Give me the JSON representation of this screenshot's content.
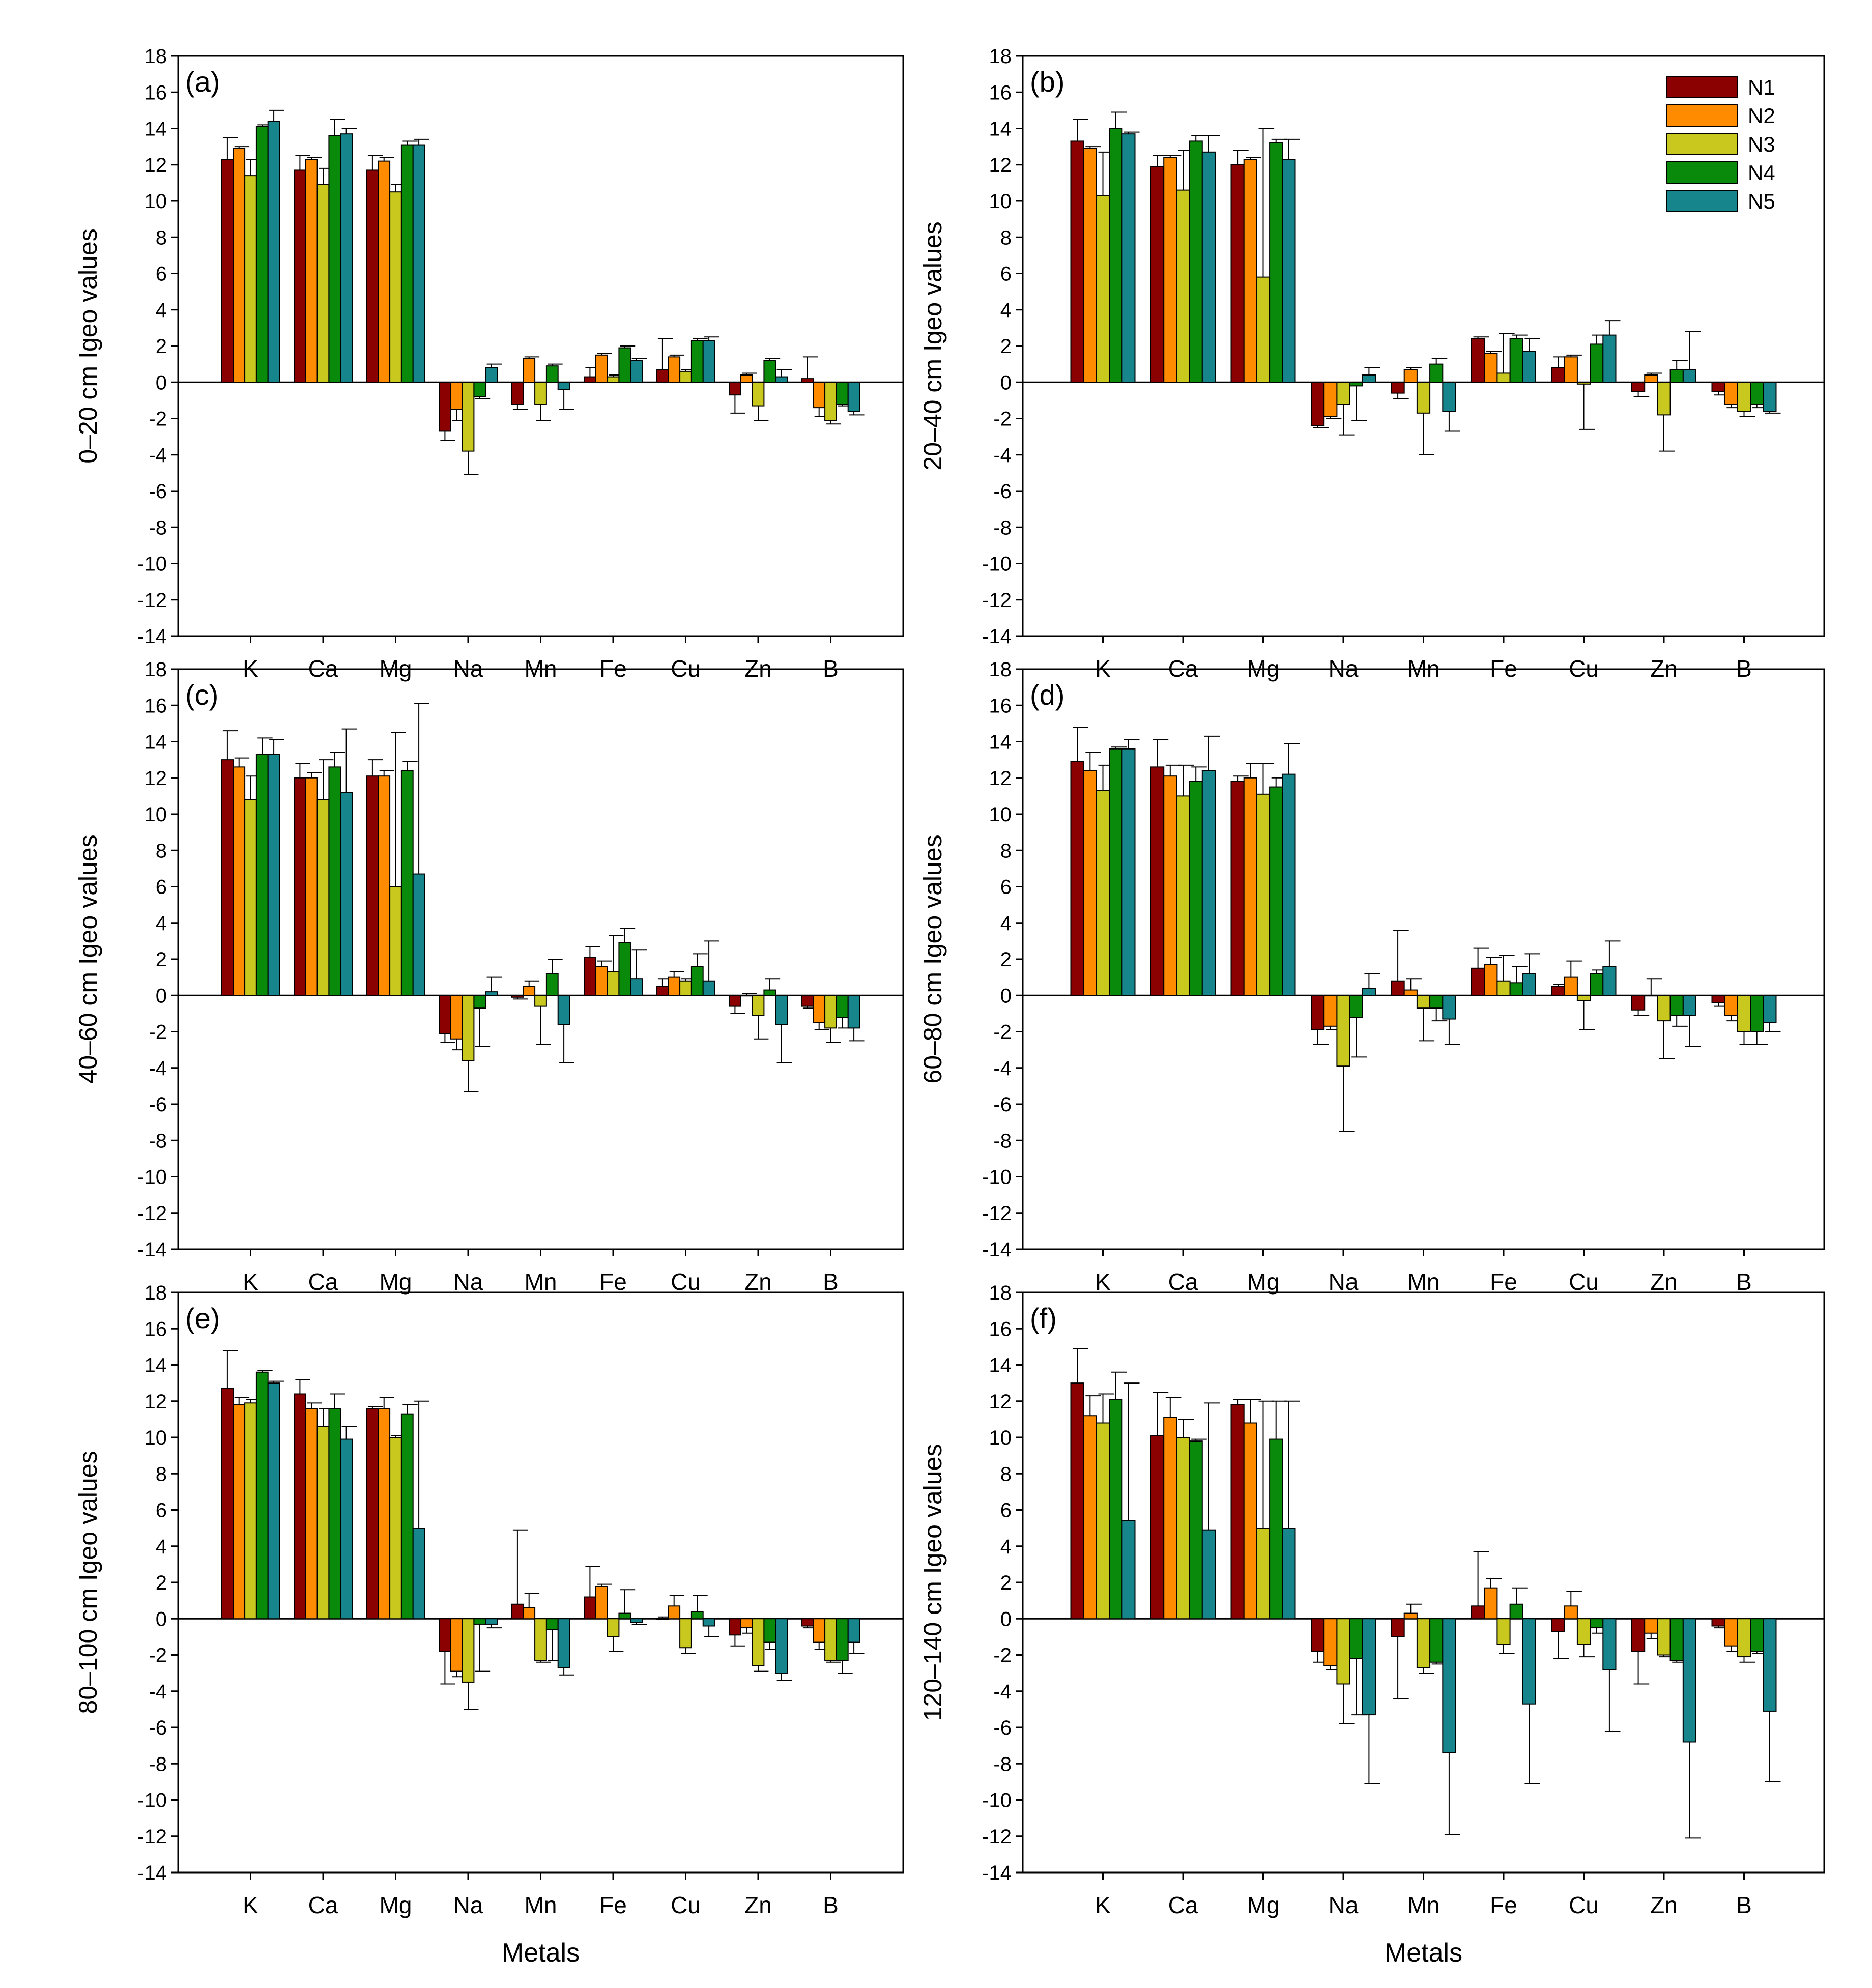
{
  "figure": {
    "xlabel": "Metals",
    "ylabel_suffix": "Igeo values"
  },
  "legend": {
    "entries": [
      {
        "name": "N1",
        "color": "#8b0000"
      },
      {
        "name": "N2",
        "color": "#ff8c00"
      },
      {
        "name": "N3",
        "color": "#c8c81e"
      },
      {
        "name": "N4",
        "color": "#0a8a0a"
      },
      {
        "name": "N5",
        "color": "#17858c"
      }
    ]
  },
  "chart_data": [
    {
      "type": "bar",
      "panel": "(a)",
      "ylabel": "0–20 cm Igeo values",
      "xlabel": "",
      "ylim": [
        -14,
        18
      ],
      "yticks": [
        -14,
        -12,
        -10,
        -8,
        -6,
        -4,
        -2,
        0,
        2,
        4,
        6,
        8,
        10,
        12,
        14,
        16,
        18
      ],
      "categories": [
        "K",
        "Ca",
        "Mg",
        "Na",
        "Mn",
        "Fe",
        "Cu",
        "Zn",
        "B"
      ],
      "series": [
        {
          "name": "N1",
          "values": [
            12.3,
            11.7,
            11.7,
            -2.7,
            -1.2,
            0.3,
            0.7,
            -0.7,
            0.2
          ],
          "errors": [
            1.2,
            0.8,
            0.8,
            0.5,
            0.3,
            0.5,
            1.7,
            1.0,
            1.2
          ]
        },
        {
          "name": "N2",
          "values": [
            12.9,
            12.3,
            12.2,
            -1.5,
            1.3,
            1.5,
            1.4,
            0.4,
            -1.4
          ],
          "errors": [
            0.1,
            0.1,
            0.2,
            0.6,
            0.1,
            0.1,
            0.1,
            0.1,
            0.5
          ]
        },
        {
          "name": "N3",
          "values": [
            11.4,
            10.9,
            10.5,
            -3.8,
            -1.2,
            0.3,
            0.6,
            -1.3,
            -2.1
          ],
          "errors": [
            0.9,
            0.9,
            0.4,
            1.3,
            0.9,
            0.1,
            0.1,
            0.8,
            0.2
          ]
        },
        {
          "name": "N4",
          "values": [
            14.1,
            13.6,
            13.1,
            -0.8,
            0.9,
            1.9,
            2.3,
            1.2,
            -1.2
          ],
          "errors": [
            0.1,
            0.9,
            0.2,
            0.1,
            0.1,
            0.1,
            0.1,
            0.1,
            0.1
          ]
        },
        {
          "name": "N5",
          "values": [
            14.4,
            13.7,
            13.1,
            0.8,
            -0.4,
            1.2,
            2.3,
            0.3,
            -1.6
          ],
          "errors": [
            0.6,
            0.3,
            0.3,
            0.2,
            1.1,
            0.1,
            0.2,
            0.4,
            0.2
          ]
        }
      ]
    },
    {
      "type": "bar",
      "panel": "(b)",
      "ylabel": "20–40 cm Igeo values",
      "xlabel": "",
      "ylim": [
        -14,
        18
      ],
      "yticks": [
        -14,
        -12,
        -10,
        -8,
        -6,
        -4,
        -2,
        0,
        2,
        4,
        6,
        8,
        10,
        12,
        14,
        16,
        18
      ],
      "categories": [
        "K",
        "Ca",
        "Mg",
        "Na",
        "Mn",
        "Fe",
        "Cu",
        "Zn",
        "B"
      ],
      "series": [
        {
          "name": "N1",
          "values": [
            13.3,
            11.9,
            12.0,
            -2.4,
            -0.6,
            2.4,
            0.8,
            -0.5,
            -0.5
          ],
          "errors": [
            1.2,
            0.6,
            0.8,
            0.1,
            0.3,
            0.1,
            0.6,
            0.3,
            0.2
          ]
        },
        {
          "name": "N2",
          "values": [
            12.9,
            12.4,
            12.3,
            -1.9,
            0.7,
            1.6,
            1.4,
            0.4,
            -1.2
          ],
          "errors": [
            0.1,
            0.1,
            0.1,
            0.1,
            0.1,
            0.1,
            0.1,
            0.1,
            0.2
          ]
        },
        {
          "name": "N3",
          "values": [
            10.3,
            10.6,
            5.8,
            -1.2,
            -1.7,
            0.5,
            -0.1,
            -1.8,
            -1.6
          ],
          "errors": [
            2.4,
            2.2,
            8.2,
            1.7,
            2.3,
            2.2,
            2.5,
            2.0,
            0.3
          ]
        },
        {
          "name": "N4",
          "values": [
            14.0,
            13.3,
            13.2,
            -0.2,
            1.0,
            2.4,
            2.1,
            0.7,
            -1.2
          ],
          "errors": [
            0.9,
            0.3,
            0.2,
            1.9,
            0.3,
            0.2,
            0.5,
            0.5,
            0.2
          ]
        },
        {
          "name": "N5",
          "values": [
            13.7,
            12.7,
            12.3,
            0.4,
            -1.6,
            1.7,
            2.6,
            0.7,
            -1.6
          ],
          "errors": [
            0.1,
            0.9,
            1.1,
            0.4,
            1.1,
            0.7,
            0.8,
            2.1,
            0.1
          ]
        }
      ]
    },
    {
      "type": "bar",
      "panel": "(c)",
      "ylabel": "40–60 cm Igeo values",
      "xlabel": "",
      "ylim": [
        -14,
        18
      ],
      "yticks": [
        -14,
        -12,
        -10,
        -8,
        -6,
        -4,
        -2,
        0,
        2,
        4,
        6,
        8,
        10,
        12,
        14,
        16,
        18
      ],
      "categories": [
        "K",
        "Ca",
        "Mg",
        "Na",
        "Mn",
        "Fe",
        "Cu",
        "Zn",
        "B"
      ],
      "series": [
        {
          "name": "N1",
          "values": [
            13.0,
            12.0,
            12.1,
            -2.1,
            -0.1,
            2.1,
            0.5,
            -0.6,
            -0.6
          ],
          "errors": [
            1.6,
            0.8,
            0.9,
            0.5,
            0.1,
            0.6,
            0.4,
            0.4,
            0.1
          ]
        },
        {
          "name": "N2",
          "values": [
            12.6,
            12.0,
            12.1,
            -2.4,
            0.5,
            1.6,
            1.0,
            0.0,
            -1.5
          ],
          "errors": [
            0.5,
            0.3,
            0.3,
            0.6,
            0.3,
            0.3,
            0.3,
            0.1,
            0.4
          ]
        },
        {
          "name": "N3",
          "values": [
            10.8,
            10.8,
            6.0,
            -3.6,
            -0.6,
            1.3,
            0.8,
            -1.1,
            -1.8
          ],
          "errors": [
            1.3,
            2.2,
            8.5,
            1.7,
            2.1,
            2.0,
            0.1,
            1.3,
            0.8
          ]
        },
        {
          "name": "N4",
          "values": [
            13.3,
            12.6,
            12.4,
            -0.7,
            1.2,
            2.9,
            1.6,
            0.3,
            -1.2
          ],
          "errors": [
            0.9,
            0.8,
            0.5,
            2.1,
            0.8,
            0.8,
            0.7,
            0.6,
            0.6
          ]
        },
        {
          "name": "N5",
          "values": [
            13.3,
            11.2,
            6.7,
            0.2,
            -1.6,
            0.9,
            0.8,
            -1.6,
            -1.8
          ],
          "errors": [
            0.8,
            3.5,
            9.4,
            0.8,
            2.1,
            1.6,
            2.2,
            2.1,
            0.7
          ]
        }
      ]
    },
    {
      "type": "bar",
      "panel": "(d)",
      "ylabel": "60–80 cm Igeo values",
      "xlabel": "",
      "ylim": [
        -14,
        18
      ],
      "yticks": [
        -14,
        -12,
        -10,
        -8,
        -6,
        -4,
        -2,
        0,
        2,
        4,
        6,
        8,
        10,
        12,
        14,
        16,
        18
      ],
      "categories": [
        "K",
        "Ca",
        "Mg",
        "Na",
        "Mn",
        "Fe",
        "Cu",
        "Zn",
        "B"
      ],
      "series": [
        {
          "name": "N1",
          "values": [
            12.9,
            12.6,
            11.8,
            -1.9,
            0.8,
            1.5,
            0.5,
            -0.8,
            -0.4
          ],
          "errors": [
            1.9,
            1.5,
            0.3,
            0.8,
            2.8,
            1.1,
            0.1,
            0.3,
            0.2
          ]
        },
        {
          "name": "N2",
          "values": [
            12.4,
            12.1,
            12.0,
            -1.7,
            0.3,
            1.7,
            1.0,
            0.0,
            -1.1
          ],
          "errors": [
            1.0,
            0.6,
            0.8,
            0.2,
            0.6,
            0.4,
            0.9,
            0.9,
            0.3
          ]
        },
        {
          "name": "N3",
          "values": [
            11.3,
            11.0,
            11.1,
            -3.9,
            -0.7,
            0.8,
            -0.3,
            -1.4,
            -2.0
          ],
          "errors": [
            1.4,
            1.7,
            1.7,
            3.6,
            1.8,
            1.4,
            1.6,
            2.1,
            0.7
          ]
        },
        {
          "name": "N4",
          "values": [
            13.6,
            11.8,
            11.5,
            -1.2,
            -0.7,
            0.7,
            1.2,
            -1.1,
            -2.0
          ],
          "errors": [
            0.1,
            0.8,
            0.5,
            2.2,
            0.7,
            0.9,
            0.2,
            0.6,
            0.7
          ]
        },
        {
          "name": "N5",
          "values": [
            13.6,
            12.4,
            12.2,
            0.4,
            -1.3,
            1.2,
            1.6,
            -1.1,
            -1.5
          ],
          "errors": [
            0.5,
            1.9,
            1.7,
            0.8,
            1.4,
            1.1,
            1.4,
            1.7,
            0.5
          ]
        }
      ]
    },
    {
      "type": "bar",
      "panel": "(e)",
      "ylabel": "80–100 cm Igeo values",
      "xlabel": "Metals",
      "ylim": [
        -14,
        18
      ],
      "yticks": [
        -14,
        -12,
        -10,
        -8,
        -6,
        -4,
        -2,
        0,
        2,
        4,
        6,
        8,
        10,
        12,
        14,
        16,
        18
      ],
      "categories": [
        "K",
        "Ca",
        "Mg",
        "Na",
        "Mn",
        "Fe",
        "Cu",
        "Zn",
        "B"
      ],
      "series": [
        {
          "name": "N1",
          "values": [
            12.7,
            12.4,
            11.6,
            -1.8,
            0.8,
            1.2,
            0.0,
            -0.9,
            -0.4
          ],
          "errors": [
            2.1,
            0.8,
            0.1,
            1.8,
            4.1,
            1.7,
            0.1,
            0.6,
            0.1
          ]
        },
        {
          "name": "N2",
          "values": [
            11.8,
            11.6,
            11.6,
            -2.9,
            0.6,
            1.8,
            0.7,
            -0.5,
            -1.3
          ],
          "errors": [
            0.4,
            0.3,
            0.6,
            0.3,
            0.8,
            0.1,
            0.6,
            0.3,
            0.4
          ]
        },
        {
          "name": "N3",
          "values": [
            11.9,
            10.6,
            10.0,
            -3.5,
            -2.3,
            -1.0,
            -1.6,
            -2.6,
            -2.3
          ],
          "errors": [
            0.2,
            1.0,
            0.1,
            1.5,
            0.1,
            0.8,
            0.3,
            0.3,
            0.1
          ]
        },
        {
          "name": "N4",
          "values": [
            13.6,
            11.6,
            11.3,
            -0.3,
            -0.6,
            0.3,
            0.4,
            -1.3,
            -2.3
          ],
          "errors": [
            0.1,
            0.8,
            0.5,
            2.6,
            1.7,
            1.3,
            0.9,
            0.4,
            0.7
          ]
        },
        {
          "name": "N5",
          "values": [
            13.0,
            9.9,
            5.0,
            -0.3,
            -2.7,
            -0.2,
            -0.4,
            -3.0,
            -1.3
          ],
          "errors": [
            0.1,
            0.7,
            7.0,
            0.2,
            0.4,
            0.1,
            0.6,
            0.4,
            0.6
          ]
        }
      ]
    },
    {
      "type": "bar",
      "panel": "(f)",
      "ylabel": "120–140 cm Igeo values",
      "xlabel": "Metals",
      "ylim": [
        -14,
        18
      ],
      "yticks": [
        -14,
        -12,
        -10,
        -8,
        -6,
        -4,
        -2,
        0,
        2,
        4,
        6,
        8,
        10,
        12,
        14,
        16,
        18
      ],
      "categories": [
        "K",
        "Ca",
        "Mg",
        "Na",
        "Mn",
        "Fe",
        "Cu",
        "Zn",
        "B"
      ],
      "series": [
        {
          "name": "N1",
          "values": [
            13.0,
            10.1,
            11.8,
            -1.8,
            -1.0,
            0.7,
            -0.7,
            -1.8,
            -0.4
          ],
          "errors": [
            1.9,
            2.4,
            0.3,
            0.6,
            3.4,
            3.0,
            1.5,
            1.8,
            0.1
          ]
        },
        {
          "name": "N2",
          "values": [
            11.2,
            11.1,
            10.8,
            -2.6,
            0.3,
            1.7,
            0.7,
            -0.8,
            -1.5
          ],
          "errors": [
            1.1,
            1.1,
            1.3,
            0.2,
            0.5,
            0.5,
            0.8,
            0.3,
            0.3
          ]
        },
        {
          "name": "N3",
          "values": [
            10.8,
            10.0,
            5.0,
            -3.6,
            -2.7,
            -1.4,
            -1.4,
            -2.0,
            -2.1
          ],
          "errors": [
            1.6,
            1.0,
            7.0,
            2.2,
            0.3,
            0.5,
            0.7,
            0.1,
            0.3
          ]
        },
        {
          "name": "N4",
          "values": [
            12.1,
            9.8,
            9.9,
            -2.2,
            -2.4,
            0.8,
            -0.5,
            -2.3,
            -1.8
          ],
          "errors": [
            1.5,
            0.1,
            2.1,
            3.1,
            0.1,
            0.9,
            0.3,
            0.1,
            0.1
          ]
        },
        {
          "name": "N5",
          "values": [
            5.4,
            4.9,
            5.0,
            -5.3,
            -7.4,
            -4.7,
            -2.8,
            -6.8,
            -5.1
          ],
          "errors": [
            7.6,
            7.0,
            7.0,
            3.8,
            4.5,
            4.4,
            3.4,
            5.3,
            3.9
          ]
        }
      ]
    }
  ]
}
